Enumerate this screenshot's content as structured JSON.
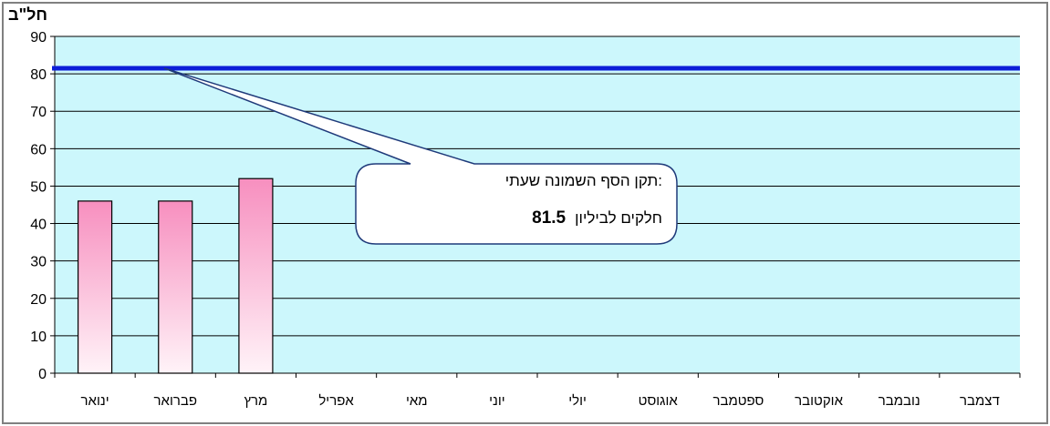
{
  "chart_data": {
    "type": "bar",
    "categories": [
      "ינואר",
      "פברואר",
      "מרץ",
      "אפריל",
      "מאי",
      "יוני",
      "יולי",
      "אוגוסט",
      "ספטמבר",
      "אוקטובר",
      "נובמבר",
      "דצמבר"
    ],
    "values": [
      46,
      46,
      52,
      null,
      null,
      null,
      null,
      null,
      null,
      null,
      null,
      null
    ],
    "ylabel": "חל\"ב",
    "ylim": [
      0,
      90
    ],
    "yticks": [
      0,
      10,
      20,
      30,
      40,
      50,
      60,
      70,
      80,
      90
    ],
    "grid": true,
    "reference_line": {
      "value": 81.5,
      "label_line1": "תקן  הסף השמונה שעתי:",
      "label_value": "81.5",
      "label_unit": "חלקים לביליון"
    },
    "colors": {
      "plot_background": "#ccf7fc",
      "bar_top": "#f78fbf",
      "bar_bottom": "#fff3f8",
      "reference_line": "#0c1ed8"
    }
  }
}
